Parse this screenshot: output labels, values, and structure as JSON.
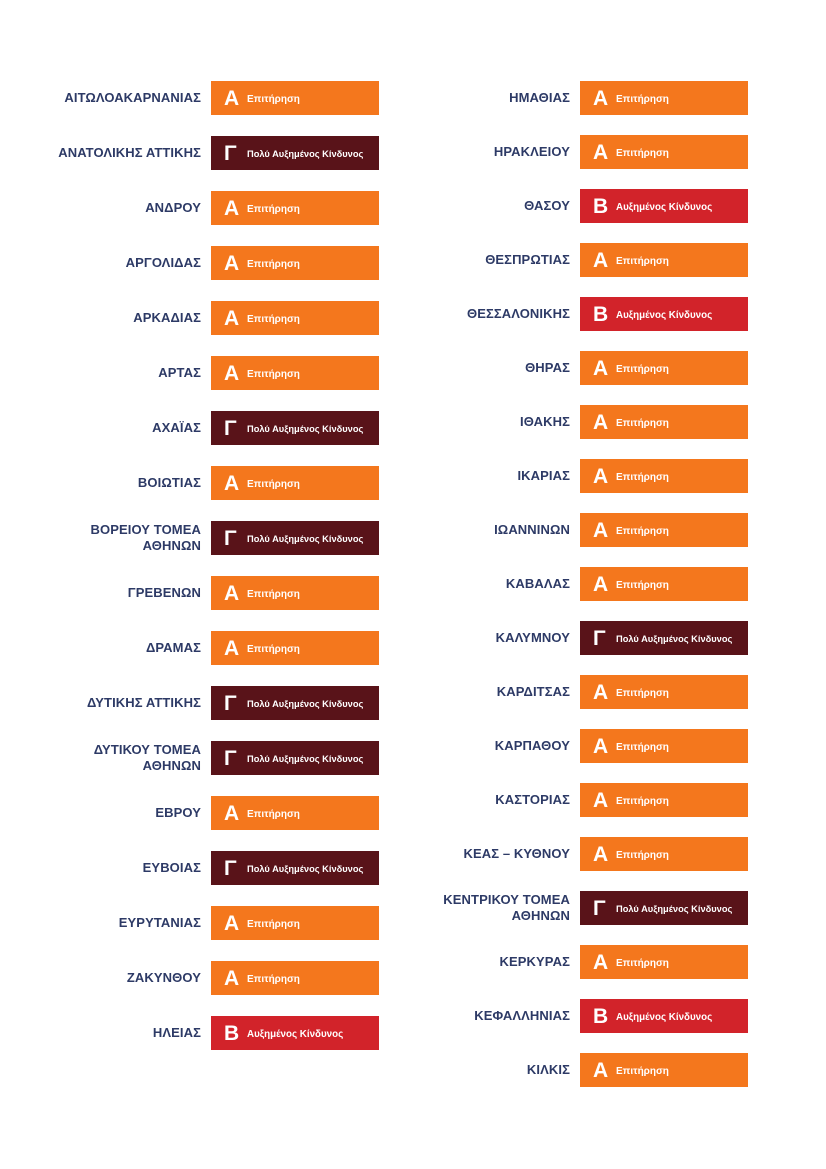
{
  "theme": {
    "region_text_color": "#2D3A66",
    "badge_text_color": "#FFFFFF",
    "background_color": "#FFFFFF"
  },
  "levels": {
    "A": {
      "letter": "Α",
      "label": "Επιτήρηση",
      "color": "#F4771D"
    },
    "B": {
      "letter": "Β",
      "label": "Αυξημένος Κίνδυνος",
      "color": "#D2232A"
    },
    "C": {
      "letter": "Γ",
      "label": "Πολύ Αυξημένος Κίνδυνος",
      "color": "#591319"
    }
  },
  "columns": [
    {
      "items": [
        {
          "region": "ΑΙΤΩΛΟΑΚΑΡΝΑΝΙΑΣ",
          "level": "A"
        },
        {
          "region": "ΑΝΑΤΟΛΙΚΗΣ ΑΤΤΙΚΗΣ",
          "level": "C"
        },
        {
          "region": "ΑΝΔΡΟΥ",
          "level": "A"
        },
        {
          "region": "ΑΡΓΟΛΙΔΑΣ",
          "level": "A"
        },
        {
          "region": "ΑΡΚΑΔΙΑΣ",
          "level": "A"
        },
        {
          "region": "ΑΡΤΑΣ",
          "level": "A"
        },
        {
          "region": "ΑΧΑΪΑΣ",
          "level": "C"
        },
        {
          "region": "ΒΟΙΩΤΙΑΣ",
          "level": "A"
        },
        {
          "region": "ΒΟΡΕΙΟΥ ΤΟΜΕΑ ΑΘΗΝΩΝ",
          "level": "C"
        },
        {
          "region": "ΓΡΕΒΕΝΩΝ",
          "level": "A"
        },
        {
          "region": "ΔΡΑΜΑΣ",
          "level": "A"
        },
        {
          "region": "ΔΥΤΙΚΗΣ ΑΤΤΙΚΗΣ",
          "level": "C"
        },
        {
          "region": "ΔΥΤΙΚΟΥ ΤΟΜΕΑ ΑΘΗΝΩΝ",
          "level": "C"
        },
        {
          "region": "ΕΒΡΟΥ",
          "level": "A"
        },
        {
          "region": "ΕΥΒΟΙΑΣ",
          "level": "C"
        },
        {
          "region": "ΕΥΡΥΤΑΝΙΑΣ",
          "level": "A"
        },
        {
          "region": "ΖΑΚΥΝΘΟΥ",
          "level": "A"
        },
        {
          "region": "ΗΛΕΙΑΣ",
          "level": "B"
        }
      ]
    },
    {
      "items": [
        {
          "region": "ΗΜΑΘΙΑΣ",
          "level": "A"
        },
        {
          "region": "ΗΡΑΚΛΕΙΟΥ",
          "level": "A"
        },
        {
          "region": "ΘΑΣΟΥ",
          "level": "B"
        },
        {
          "region": "ΘΕΣΠΡΩΤΙΑΣ",
          "level": "A"
        },
        {
          "region": "ΘΕΣΣΑΛΟΝΙΚΗΣ",
          "level": "B"
        },
        {
          "region": "ΘΗΡΑΣ",
          "level": "A"
        },
        {
          "region": "ΙΘΑΚΗΣ",
          "level": "A"
        },
        {
          "region": "ΙΚΑΡΙΑΣ",
          "level": "A"
        },
        {
          "region": "ΙΩΑΝΝΙΝΩΝ",
          "level": "A"
        },
        {
          "region": "ΚΑΒΑΛΑΣ",
          "level": "A"
        },
        {
          "region": "ΚΑΛΥΜΝΟΥ",
          "level": "C"
        },
        {
          "region": "ΚΑΡΔΙΤΣΑΣ",
          "level": "A"
        },
        {
          "region": "ΚΑΡΠΑΘΟΥ",
          "level": "A"
        },
        {
          "region": "ΚΑΣΤΟΡΙΑΣ",
          "level": "A"
        },
        {
          "region": "ΚΕΑΣ – ΚΥΘΝΟΥ",
          "level": "A"
        },
        {
          "region": "ΚΕΝΤΡΙΚΟΥ ΤΟΜΕΑ ΑΘΗΝΩΝ",
          "level": "C"
        },
        {
          "region": "ΚΕΡΚΥΡΑΣ",
          "level": "A"
        },
        {
          "region": "ΚΕΦΑΛΛΗΝΙΑΣ",
          "level": "B"
        },
        {
          "region": "ΚΙΛΚΙΣ",
          "level": "A"
        }
      ]
    }
  ]
}
